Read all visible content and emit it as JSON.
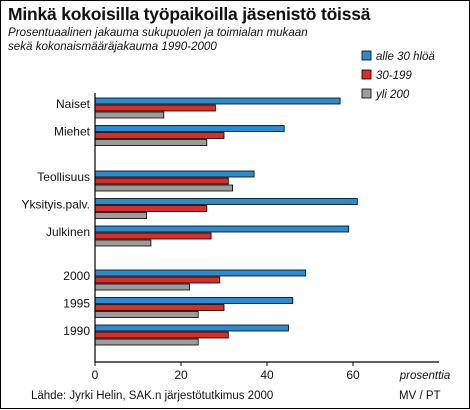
{
  "title": "Minkä kokoisilla työpaikoilla jäsenistö töissä",
  "subtitle_lines": [
    "Prosentuaalinen jakauma sukupuolen ja toimialan mukaan",
    "sekä kokonaismääräjakauma 1990-2000"
  ],
  "source": "Lähde: Jyrki Helin, SAK.n järjestötutkimus 2000",
  "credit": "MV / PT",
  "chart_data": {
    "type": "bar",
    "orientation": "horizontal",
    "categories": [
      "Naiset",
      "Miehet",
      "Teollisuus",
      "Yksityis.palv.",
      "Julkinen",
      "2000",
      "1995",
      "1990"
    ],
    "groups": [
      [
        0,
        1
      ],
      [
        2,
        3,
        4
      ],
      [
        5,
        6,
        7
      ]
    ],
    "series": [
      {
        "name": "alle 30 hlöä",
        "color": "#2a8bd0",
        "values": [
          57,
          44,
          37,
          61,
          59,
          49,
          46,
          45
        ]
      },
      {
        "name": "30-199",
        "color": "#dd2b25",
        "values": [
          28,
          30,
          31,
          26,
          27,
          29,
          30,
          31
        ]
      },
      {
        "name": "yli 200",
        "color": "#9c9c9c",
        "values": [
          16,
          26,
          32,
          12,
          13,
          22,
          24,
          24
        ]
      }
    ],
    "x_ticks": [
      0,
      20,
      40,
      60
    ],
    "xlim": [
      0,
      80
    ],
    "xlabel": "prosenttia",
    "legend_position": "top-right",
    "grid": false
  }
}
